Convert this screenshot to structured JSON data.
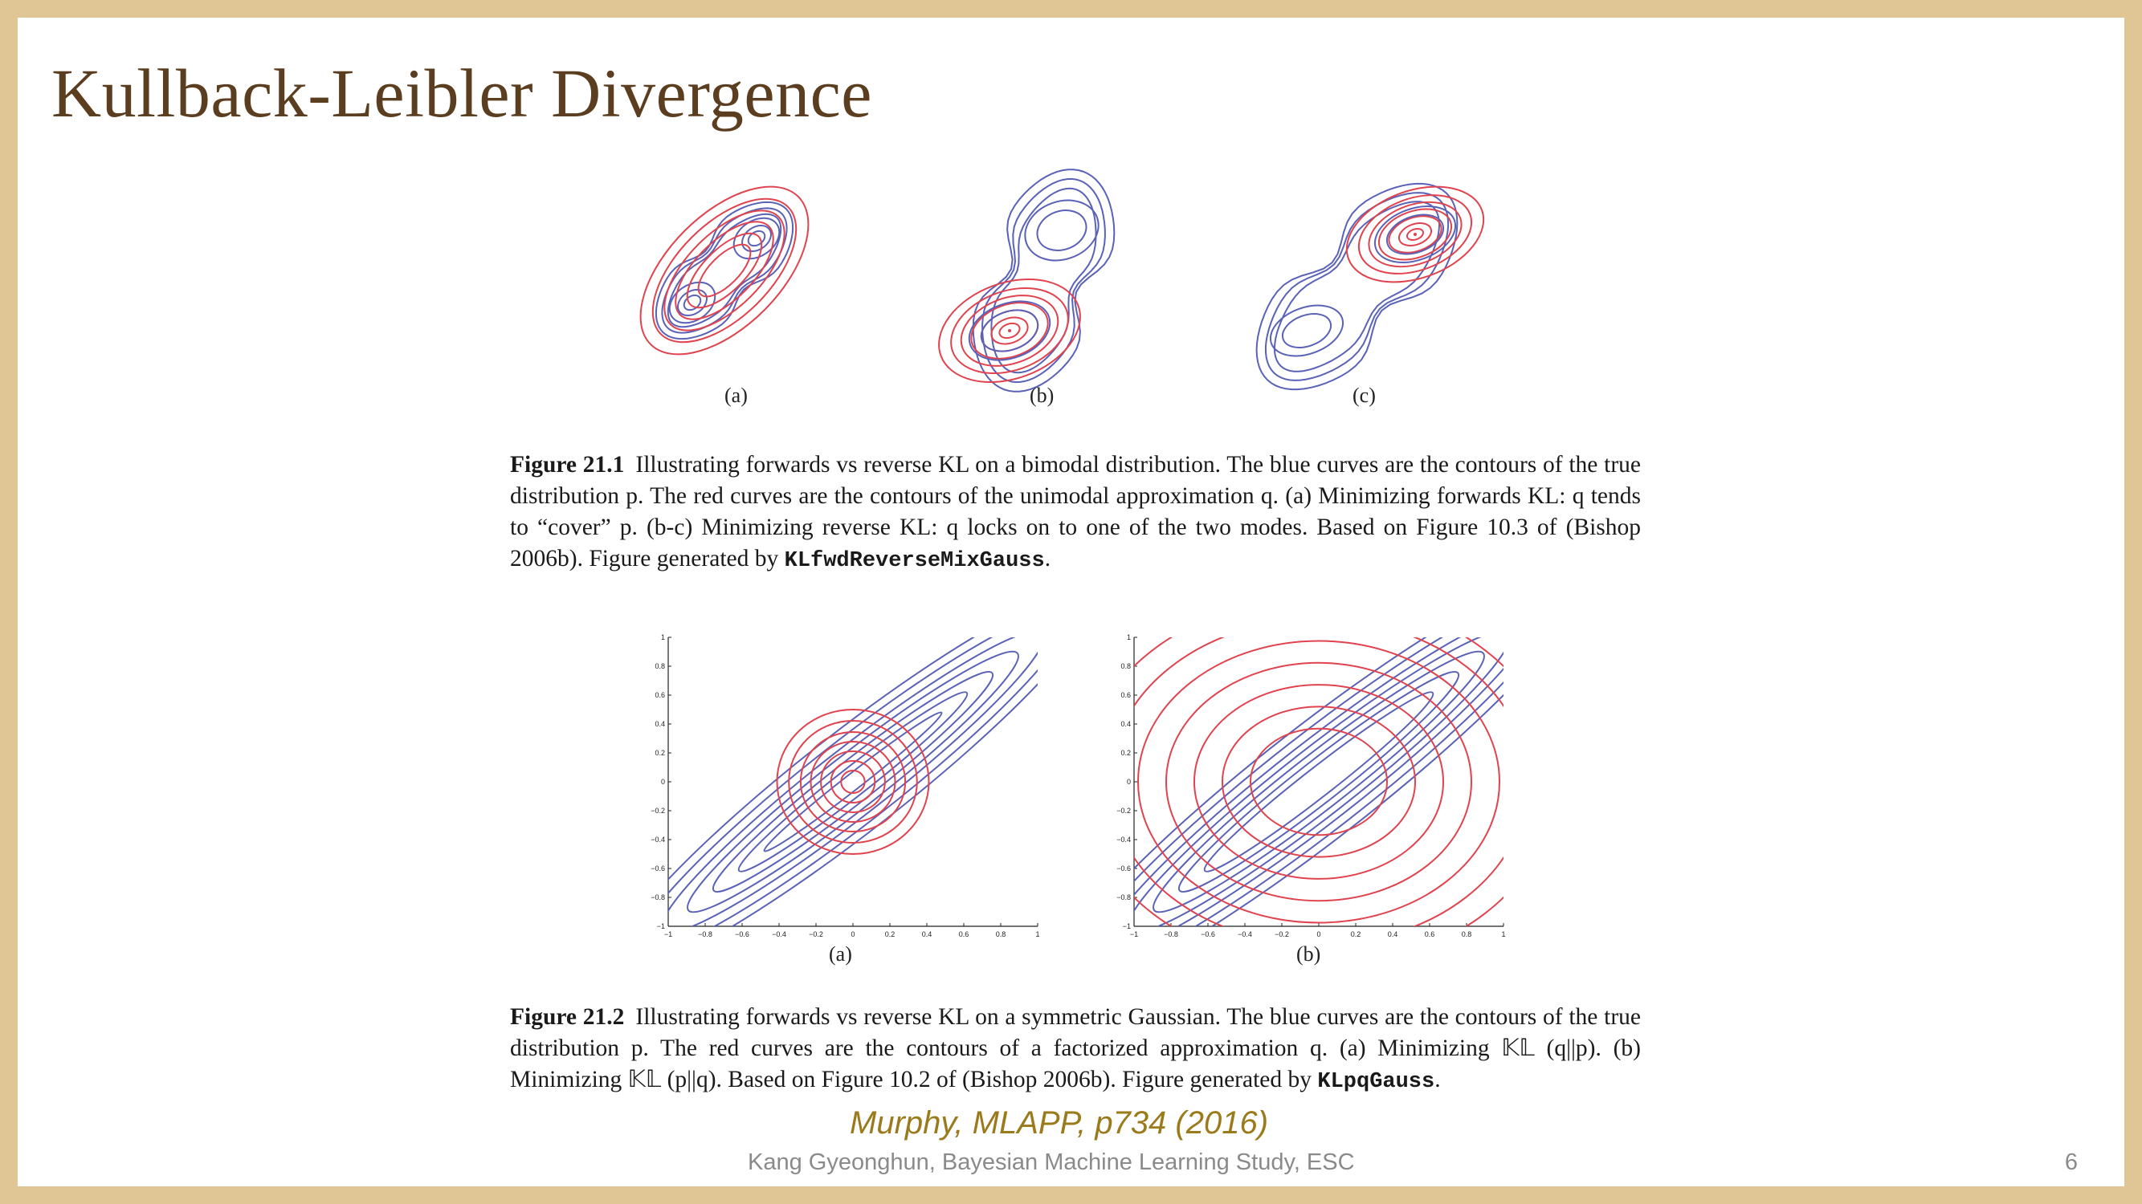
{
  "slide": {
    "title": "Kullback-Leibler Divergence",
    "credit": "Murphy, MLAPP, p734 (2016)",
    "footer": "Kang Gyeonghun, Bayesian Machine Learning Study, ESC",
    "page_number": "6"
  },
  "colors": {
    "true_distribution_p": "#5a62b8",
    "approximation_q": "#e0434e",
    "title": "#5b3d1f",
    "frame": "#e0c595",
    "credit": "#9a7a1a"
  },
  "figure_21_1": {
    "panel_labels": [
      "(a)",
      "(b)",
      "(c)"
    ],
    "caption_label": "Figure 21.1",
    "caption_text": "Illustrating forwards vs reverse KL on a bimodal distribution. The blue curves are the contours of the true distribution p. The red curves are the contours of the unimodal approximation q. (a) Minimizing forwards KL: q tends to “cover” p. (b-c) Minimizing reverse KL: q locks on to one of the two modes. Based on Figure 10.3 of (Bishop 2006b). Figure generated by",
    "caption_code": "KLfwdReverseMixGauss",
    "caption_end": "."
  },
  "figure_21_2": {
    "panel_labels": [
      "(a)",
      "(b)"
    ],
    "axis_ticks": [
      "−1",
      "−0.8",
      "−0.6",
      "−0.4",
      "−0.2",
      "0",
      "0.2",
      "0.4",
      "0.6",
      "0.8",
      "1"
    ],
    "caption_label": "Figure 21.2",
    "caption_text": "Illustrating forwards vs reverse KL on a symmetric Gaussian. The blue curves are the contours of the true distribution p. The red curves are the contours of a factorized approximation q. (a) Minimizing 𝕂𝕃 (q||p). (b) Minimizing 𝕂𝕃 (p||q). Based on Figure 10.2 of (Bishop 2006b). Figure generated by",
    "caption_code": "KLpqGauss",
    "caption_end": "."
  }
}
